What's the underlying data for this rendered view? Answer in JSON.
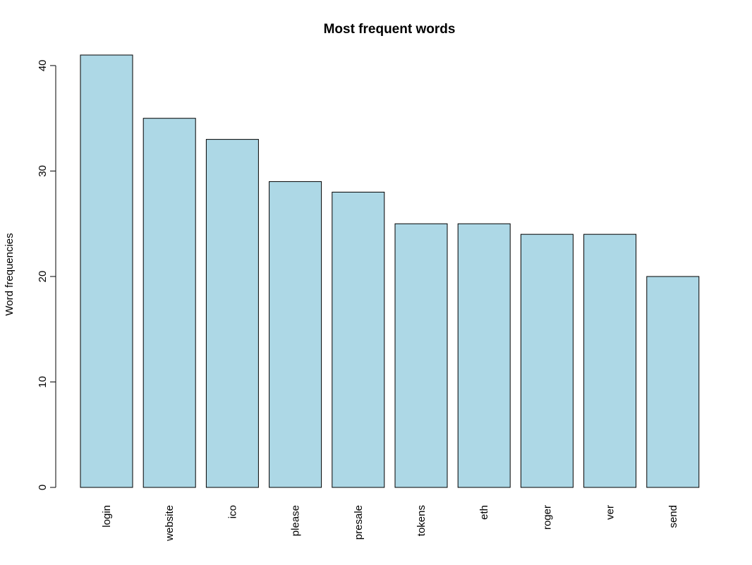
{
  "chart_data": {
    "type": "bar",
    "title": "Most frequent words",
    "xlabel": "",
    "ylabel": "Word frequencies",
    "categories": [
      "login",
      "website",
      "ico",
      "please",
      "presale",
      "tokens",
      "eth",
      "roger",
      "ver",
      "send"
    ],
    "values": [
      41,
      35,
      33,
      29,
      28,
      25,
      25,
      24,
      24,
      20
    ],
    "ylim": [
      0,
      41
    ],
    "yticks": [
      0,
      10,
      20,
      30,
      40
    ],
    "ytick_labels": [
      "0",
      "10",
      "20",
      "30",
      "40"
    ],
    "bar_color": "#add8e6",
    "bar_border_color": "#000000",
    "grid": false,
    "legend": "none",
    "x_tick_label_orientation": "vertical"
  }
}
